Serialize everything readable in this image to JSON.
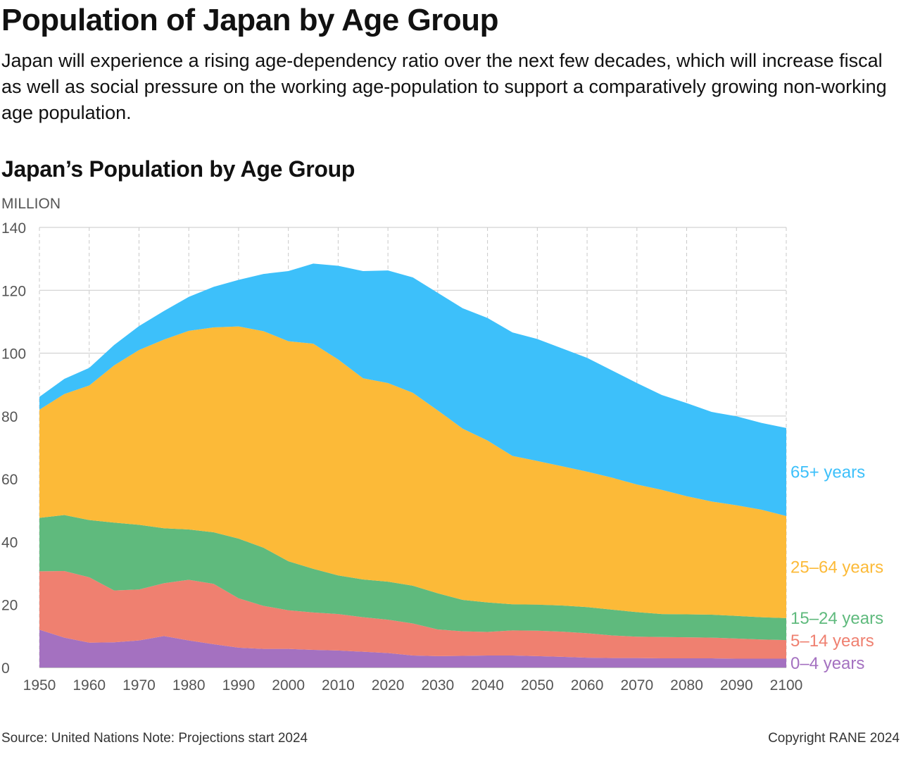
{
  "page": {
    "title": "Population of Japan by Age Group",
    "subtitle": "Japan will experience a rising age-dependency ratio over the next few decades, which will increase fiscal as well as social pressure on the working age-population to support a comparatively growing non-working age population.",
    "chart_title": "Japan’s Population by Age Group",
    "footer_source": "Source: United Nations   Note: Projections start 2024",
    "footer_copyright": "Copyright RANE 2024"
  },
  "chart_data": {
    "type": "area",
    "stacked": true,
    "title": "Japan’s Population by Age Group",
    "ylabel": "MILLION",
    "xlabel": "",
    "xlim": [
      1950,
      2100
    ],
    "ylim": [
      0,
      140
    ],
    "x_ticks": [
      1950,
      1960,
      1970,
      1980,
      1990,
      2000,
      2010,
      2020,
      2030,
      2040,
      2050,
      2060,
      2070,
      2080,
      2090,
      2100
    ],
    "y_ticks": [
      0,
      20,
      40,
      60,
      80,
      100,
      120,
      140
    ],
    "grid": {
      "horizontal": true,
      "vertical": true,
      "vertical_style": "dashed"
    },
    "legend": "direct labels at right",
    "x": [
      1950,
      1955,
      1960,
      1965,
      1970,
      1975,
      1980,
      1985,
      1990,
      1995,
      2000,
      2005,
      2010,
      2015,
      2020,
      2025,
      2030,
      2035,
      2040,
      2045,
      2050,
      2055,
      2060,
      2065,
      2070,
      2075,
      2080,
      2085,
      2090,
      2095,
      2100
    ],
    "series": [
      {
        "name": "0–4 years",
        "color": "#a471c0",
        "values": [
          12.0,
          9.5,
          7.9,
          8.0,
          8.6,
          10.0,
          8.6,
          7.4,
          6.3,
          5.9,
          5.9,
          5.6,
          5.4,
          5.0,
          4.6,
          3.8,
          3.6,
          3.7,
          3.8,
          3.8,
          3.6,
          3.4,
          3.1,
          3.0,
          3.0,
          2.9,
          2.9,
          2.9,
          2.8,
          2.8,
          2.8
        ]
      },
      {
        "name": "5–14 years",
        "color": "#ef8070",
        "values": [
          18.6,
          21.2,
          20.8,
          16.5,
          16.2,
          16.8,
          19.3,
          19.2,
          15.7,
          13.7,
          12.3,
          11.9,
          11.6,
          11.0,
          10.6,
          10.2,
          8.5,
          7.8,
          7.5,
          8.0,
          8.1,
          8.0,
          7.8,
          7.2,
          6.8,
          6.8,
          6.7,
          6.6,
          6.4,
          6.1,
          5.9
        ]
      },
      {
        "name": "15–24 years",
        "color": "#5fba7d",
        "values": [
          17.0,
          17.8,
          18.2,
          21.6,
          20.6,
          17.5,
          16.0,
          16.4,
          19.0,
          18.5,
          15.6,
          13.9,
          12.3,
          12.0,
          12.1,
          12.0,
          11.5,
          10.0,
          9.4,
          8.3,
          8.3,
          8.3,
          8.3,
          8.2,
          7.8,
          7.3,
          7.3,
          7.3,
          7.2,
          7.1,
          7.0
        ]
      },
      {
        "name": "25–64 years",
        "color": "#fcba38",
        "values": [
          34.4,
          38.5,
          42.8,
          50.0,
          55.6,
          60.0,
          63.2,
          65.2,
          67.5,
          68.9,
          70.0,
          71.6,
          68.7,
          64.0,
          63.2,
          61.4,
          58.2,
          54.5,
          51.5,
          47.2,
          45.7,
          44.3,
          43.1,
          42.0,
          40.6,
          39.5,
          37.6,
          36.0,
          35.2,
          34.2,
          32.5
        ]
      },
      {
        "name": "65+ years",
        "color": "#3dc0fa",
        "values": [
          4.1,
          4.8,
          5.6,
          6.5,
          7.6,
          9.1,
          10.8,
          12.9,
          14.8,
          18.2,
          22.3,
          25.5,
          29.8,
          34.1,
          35.8,
          36.7,
          37.4,
          38.3,
          39.0,
          39.3,
          38.8,
          37.5,
          36.2,
          34.1,
          32.3,
          30.2,
          29.6,
          28.5,
          28.3,
          27.6,
          28.0
        ]
      }
    ]
  }
}
